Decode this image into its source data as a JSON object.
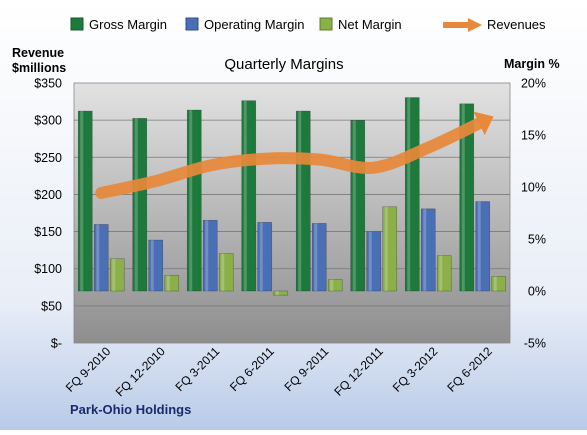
{
  "chart_data": {
    "type": "bar",
    "title": "Quarterly Margins",
    "company": "Park-Ohio Holdings",
    "left_axis_label_line1": "Revenue",
    "left_axis_label_line2": "$millions",
    "right_axis_label": "Margin %",
    "categories": [
      "FQ 9-2010",
      "FQ 12-2010",
      "FQ 3-2011",
      "FQ 6-2011",
      "FQ 9-2011",
      "FQ 12-2011",
      "FQ 3-2012",
      "FQ 6-2012"
    ],
    "left_ylim": [
      0,
      350
    ],
    "left_ticks": [
      "$-",
      "$50",
      "$100",
      "$150",
      "$200",
      "$250",
      "$300",
      "$350"
    ],
    "right_ylim": [
      -5,
      20
    ],
    "right_ticks": [
      "-5%",
      "0%",
      "5%",
      "10%",
      "15%",
      "20%"
    ],
    "series": [
      {
        "name": "Gross Margin",
        "axis": "right",
        "color": "#1e7a3c",
        "values": [
          17.3,
          16.6,
          17.4,
          18.3,
          17.3,
          16.4,
          18.6,
          18.0
        ]
      },
      {
        "name": "Operating Margin",
        "axis": "right",
        "color": "#4a6fb5",
        "values": [
          6.4,
          4.9,
          6.8,
          6.6,
          6.5,
          5.7,
          7.9,
          8.6
        ]
      },
      {
        "name": "Net Margin",
        "axis": "right",
        "color": "#8bb04a",
        "values": [
          3.1,
          1.5,
          3.6,
          -0.4,
          1.1,
          8.1,
          3.4,
          1.4
        ]
      },
      {
        "name": "Revenues",
        "axis": "left",
        "color": "#e8883a",
        "values": [
          202,
          218,
          239,
          248,
          247,
          236,
          263,
          298
        ]
      }
    ],
    "grid": true,
    "legend_position": "top"
  }
}
